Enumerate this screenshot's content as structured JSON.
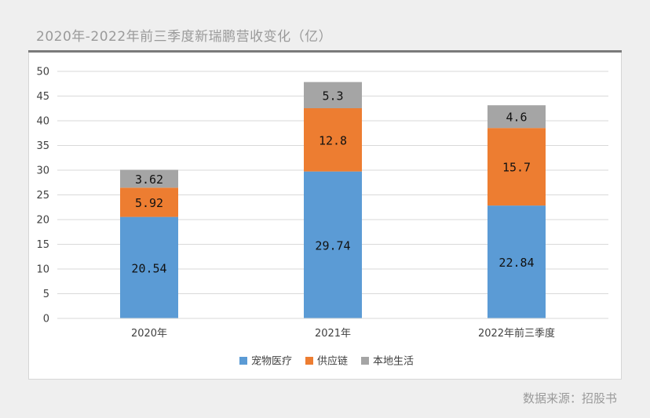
{
  "page": {
    "title": "2020年-2022年前三季度新瑞鹏营收变化（亿）",
    "source": "数据来源：招股书"
  },
  "chart_data": {
    "type": "bar",
    "stacked": true,
    "categories": [
      "2020年",
      "2021年",
      "2022年前三季度"
    ],
    "series": [
      {
        "name": "宠物医疗",
        "values": [
          20.54,
          29.74,
          22.84
        ],
        "labels": [
          "20.54",
          "29.74",
          "22.84"
        ],
        "color": "#5b9bd5"
      },
      {
        "name": "供应链",
        "values": [
          5.92,
          12.8,
          15.7
        ],
        "labels": [
          "5.92",
          "12.8",
          "15.7"
        ],
        "color": "#ed7d31"
      },
      {
        "name": "本地生活",
        "values": [
          3.62,
          5.3,
          4.6
        ],
        "labels": [
          "3.62",
          "5.3",
          "4.6"
        ],
        "color": "#a5a5a5"
      }
    ],
    "ylim": [
      0,
      50
    ],
    "yticks": [
      0,
      5,
      10,
      15,
      20,
      25,
      30,
      35,
      40,
      45,
      50
    ],
    "ytick_labels": [
      "0",
      "5",
      "10",
      "15",
      "20",
      "25",
      "30",
      "35",
      "40",
      "45",
      "50"
    ],
    "grid": true,
    "legend_position": "bottom"
  }
}
